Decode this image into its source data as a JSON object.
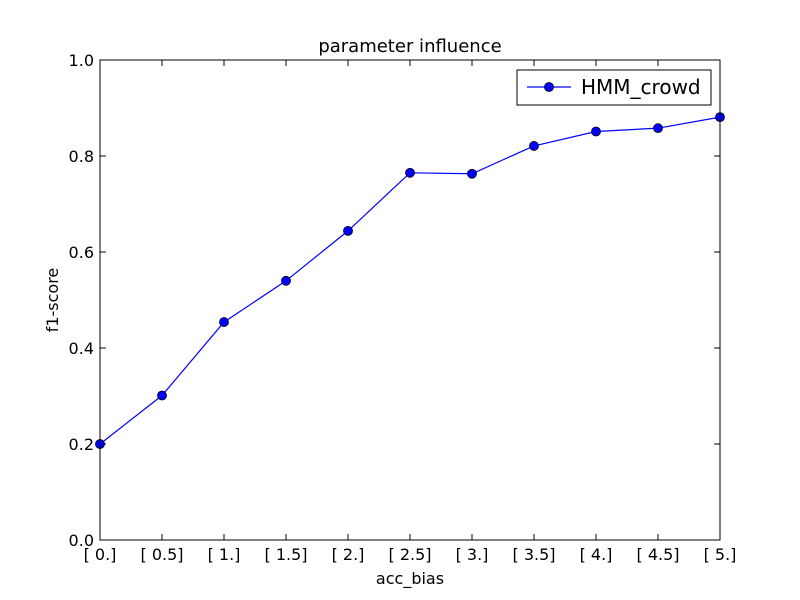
{
  "chart_data": {
    "type": "line",
    "title": "parameter influence",
    "xlabel": "acc_bias",
    "ylabel": "f1-score",
    "categories": [
      "[ 0.]",
      "[ 0.5]",
      "[ 1.]",
      "[ 1.5]",
      "[ 2.]",
      "[ 2.5]",
      "[ 3.]",
      "[ 3.5]",
      "[ 4.]",
      "[ 4.5]",
      "[ 5.]"
    ],
    "yticks": [
      "0.0",
      "0.2",
      "0.4",
      "0.6",
      "0.8",
      "1.0"
    ],
    "ylim": [
      0,
      1
    ],
    "grid": false,
    "legend_position": "top-right",
    "series": [
      {
        "name": "HMM_crowd",
        "color": "#0000ff",
        "marker": "circle",
        "values": [
          0.2,
          0.301,
          0.454,
          0.54,
          0.644,
          0.765,
          0.763,
          0.821,
          0.851,
          0.858,
          0.881
        ]
      }
    ]
  }
}
